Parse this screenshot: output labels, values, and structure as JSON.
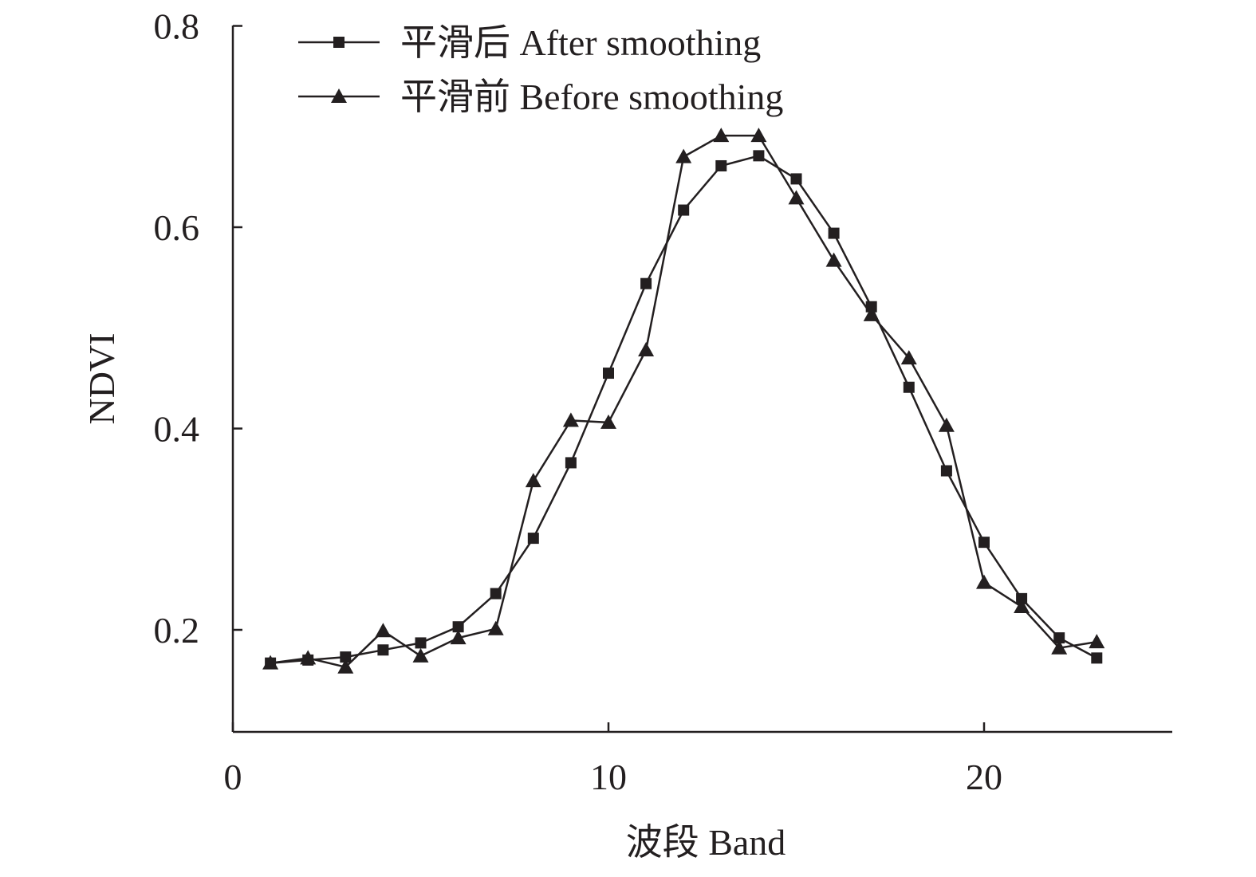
{
  "chart_data": {
    "type": "line",
    "title": "",
    "xlabel": "波段 Band",
    "ylabel": "NDVI",
    "xlim": [
      0,
      25
    ],
    "ylim": [
      0.1,
      0.8
    ],
    "xticks": [
      0,
      10,
      20
    ],
    "yticks": [
      0.2,
      0.4,
      0.6,
      0.8
    ],
    "grid": false,
    "legend_position": "top-left",
    "x": [
      1,
      2,
      3,
      4,
      5,
      6,
      7,
      8,
      9,
      10,
      11,
      12,
      13,
      14,
      15,
      16,
      17,
      18,
      19,
      20,
      21,
      22,
      23
    ],
    "series": [
      {
        "name": "平滑后 After smoothing",
        "marker": "square",
        "color": "#231f20",
        "values": [
          0.167,
          0.17,
          0.173,
          0.18,
          0.187,
          0.203,
          0.236,
          0.291,
          0.366,
          0.455,
          0.544,
          0.617,
          0.661,
          0.671,
          0.648,
          0.594,
          0.521,
          0.441,
          0.358,
          0.287,
          0.231,
          0.192,
          0.172
        ]
      },
      {
        "name": "平滑前 Before smoothing",
        "marker": "triangle",
        "color": "#231f20",
        "values": [
          0.167,
          0.172,
          0.163,
          0.199,
          0.174,
          0.192,
          0.201,
          0.348,
          0.408,
          0.406,
          0.478,
          0.67,
          0.691,
          0.691,
          0.629,
          0.567,
          0.513,
          0.47,
          0.403,
          0.247,
          0.223,
          0.182,
          0.188
        ]
      }
    ]
  }
}
